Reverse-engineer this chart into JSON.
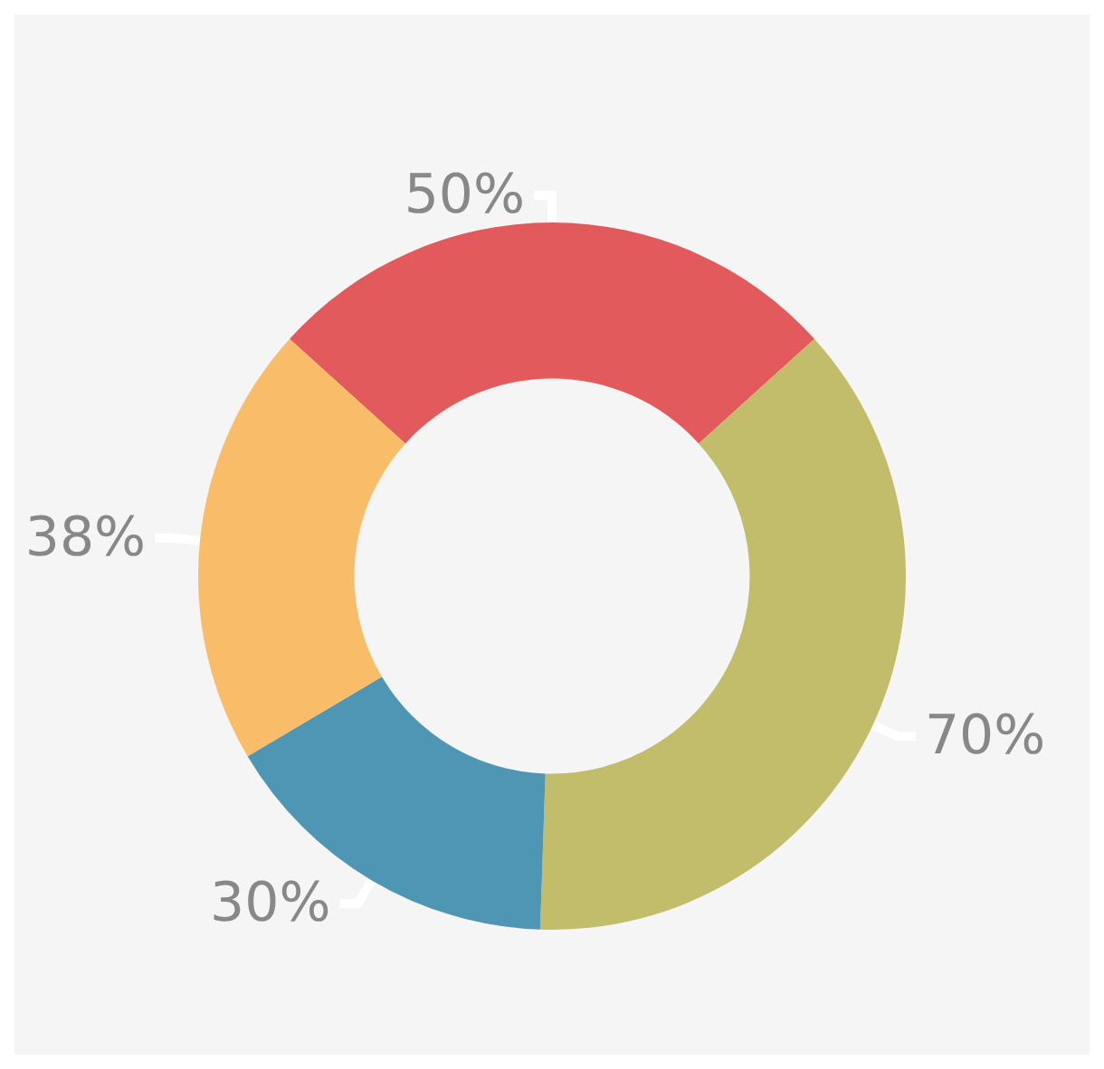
{
  "chart_data": {
    "type": "donut",
    "categories": [
      null,
      null,
      null,
      null
    ],
    "values": [
      50,
      70,
      30,
      38
    ],
    "colors": [
      "#e35a5c",
      "#c2bd6a",
      "#4f96b4",
      "#f9bd6a"
    ],
    "value_labels": [
      "50%",
      "70%",
      "30%",
      "38%"
    ]
  }
}
